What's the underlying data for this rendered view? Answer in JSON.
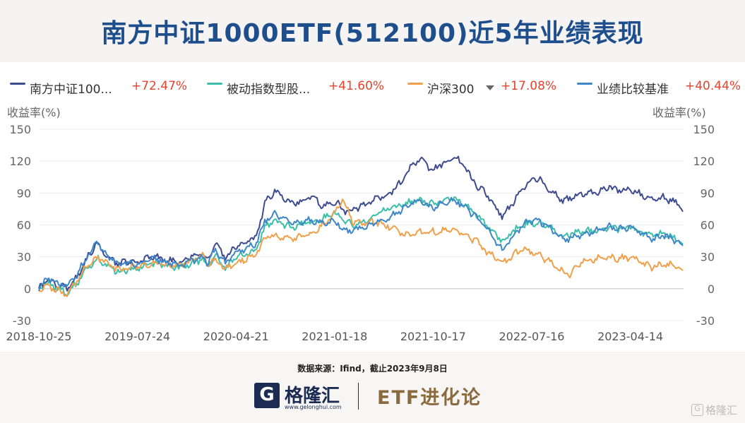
{
  "title": "南方中证1000ETF(512100)近5年业绩表现",
  "legend": [
    {
      "name": "南方中证100...",
      "value": "+72.47%",
      "color": "#3d4b8f"
    },
    {
      "name": "被动指数型股...",
      "value": "+41.60%",
      "color": "#3bbfa8"
    },
    {
      "name": "沪深300",
      "value": "+17.08%",
      "color": "#f0a04b",
      "dropdown_icon": "caret-down-icon"
    },
    {
      "name": "业绩比较基准",
      "value": "+40.44%",
      "color": "#3f86c8"
    }
  ],
  "source": "数据来源：Ifind，截止2023年9月8日",
  "footer": {
    "logo_mark": "G",
    "logo_text": "格隆汇",
    "logo_url": "www.gelonghui.com",
    "brand": "ETF进化论",
    "watermark_mark": "G",
    "watermark_text": "格隆汇"
  },
  "chart_data": {
    "type": "line",
    "ylabel_left": "收益率(%)",
    "ylabel_right": "收益率(%)",
    "ylim": [
      -30,
      150
    ],
    "yticks": [
      -30,
      0,
      30,
      60,
      90,
      120,
      150
    ],
    "xlim": [
      "2018-10-25",
      "2023-09-08"
    ],
    "xticks": [
      "2018-10-25",
      "2019-07-24",
      "2020-04-21",
      "2021-01-18",
      "2021-10-17",
      "2022-07-16",
      "2023-04-14"
    ],
    "grid": "horizontal",
    "series": [
      {
        "name": "南方中证100...",
        "color": "#3d4b8f",
        "final": 72.47,
        "points": [
          [
            "2018-10-25",
            0
          ],
          [
            "2018-11-20",
            8
          ],
          [
            "2018-12-20",
            3
          ],
          [
            "2019-01-10",
            0
          ],
          [
            "2019-02-10",
            12
          ],
          [
            "2019-03-05",
            28
          ],
          [
            "2019-04-05",
            44
          ],
          [
            "2019-04-25",
            30
          ],
          [
            "2019-06-01",
            24
          ],
          [
            "2019-07-24",
            26
          ],
          [
            "2019-09-10",
            30
          ],
          [
            "2019-11-20",
            24
          ],
          [
            "2019-12-31",
            32
          ],
          [
            "2020-01-20",
            34
          ],
          [
            "2020-02-03",
            26
          ],
          [
            "2020-02-24",
            44
          ],
          [
            "2020-03-23",
            28
          ],
          [
            "2020-04-21",
            40
          ],
          [
            "2020-06-15",
            48
          ],
          [
            "2020-07-10",
            80
          ],
          [
            "2020-08-05",
            92
          ],
          [
            "2020-09-20",
            80
          ],
          [
            "2020-11-20",
            86
          ],
          [
            "2020-12-15",
            78
          ],
          [
            "2021-01-18",
            82
          ],
          [
            "2021-02-20",
            72
          ],
          [
            "2021-03-20",
            76
          ],
          [
            "2021-04-20",
            80
          ],
          [
            "2021-05-20",
            86
          ],
          [
            "2021-06-20",
            90
          ],
          [
            "2021-07-20",
            100
          ],
          [
            "2021-08-20",
            116
          ],
          [
            "2021-09-10",
            122
          ],
          [
            "2021-10-17",
            112
          ],
          [
            "2021-11-15",
            118
          ],
          [
            "2021-12-13",
            124
          ],
          [
            "2022-01-10",
            116
          ],
          [
            "2022-02-10",
            98
          ],
          [
            "2022-03-10",
            90
          ],
          [
            "2022-04-26",
            68
          ],
          [
            "2022-05-20",
            78
          ],
          [
            "2022-06-20",
            94
          ],
          [
            "2022-07-16",
            102
          ],
          [
            "2022-08-05",
            104
          ],
          [
            "2022-09-01",
            94
          ],
          [
            "2022-10-10",
            82
          ],
          [
            "2022-11-05",
            86
          ],
          [
            "2022-12-05",
            90
          ],
          [
            "2023-01-10",
            90
          ],
          [
            "2023-02-15",
            96
          ],
          [
            "2023-03-15",
            92
          ],
          [
            "2023-04-14",
            94
          ],
          [
            "2023-05-15",
            88
          ],
          [
            "2023-06-15",
            84
          ],
          [
            "2023-07-15",
            86
          ],
          [
            "2023-08-15",
            82
          ],
          [
            "2023-09-08",
            72.47
          ]
        ]
      },
      {
        "name": "被动指数型股...",
        "color": "#3bbfa8",
        "final": 41.6,
        "points": [
          [
            "2018-10-25",
            0
          ],
          [
            "2018-11-20",
            5
          ],
          [
            "2018-12-20",
            0
          ],
          [
            "2019-01-10",
            -4
          ],
          [
            "2019-02-10",
            6
          ],
          [
            "2019-03-05",
            20
          ],
          [
            "2019-04-05",
            28
          ],
          [
            "2019-04-25",
            22
          ],
          [
            "2019-06-01",
            16
          ],
          [
            "2019-07-24",
            20
          ],
          [
            "2019-09-10",
            24
          ],
          [
            "2019-11-20",
            20
          ],
          [
            "2019-12-31",
            26
          ],
          [
            "2020-01-20",
            28
          ],
          [
            "2020-02-03",
            22
          ],
          [
            "2020-02-24",
            32
          ],
          [
            "2020-03-23",
            20
          ],
          [
            "2020-04-21",
            30
          ],
          [
            "2020-06-15",
            36
          ],
          [
            "2020-07-10",
            58
          ],
          [
            "2020-08-05",
            64
          ],
          [
            "2020-09-20",
            58
          ],
          [
            "2020-11-20",
            64
          ],
          [
            "2020-12-15",
            66
          ],
          [
            "2021-01-18",
            72
          ],
          [
            "2021-02-20",
            62
          ],
          [
            "2021-03-20",
            60
          ],
          [
            "2021-04-20",
            66
          ],
          [
            "2021-05-20",
            72
          ],
          [
            "2021-06-20",
            76
          ],
          [
            "2021-07-20",
            78
          ],
          [
            "2021-08-20",
            82
          ],
          [
            "2021-09-10",
            84
          ],
          [
            "2021-10-17",
            80
          ],
          [
            "2021-11-15",
            82
          ],
          [
            "2021-12-13",
            86
          ],
          [
            "2022-01-10",
            80
          ],
          [
            "2022-02-10",
            70
          ],
          [
            "2022-03-10",
            62
          ],
          [
            "2022-04-26",
            44
          ],
          [
            "2022-05-20",
            52
          ],
          [
            "2022-06-20",
            60
          ],
          [
            "2022-07-16",
            62
          ],
          [
            "2022-08-05",
            62
          ],
          [
            "2022-09-01",
            58
          ],
          [
            "2022-10-10",
            48
          ],
          [
            "2022-11-05",
            52
          ],
          [
            "2022-12-05",
            54
          ],
          [
            "2023-01-10",
            54
          ],
          [
            "2023-02-15",
            58
          ],
          [
            "2023-03-15",
            56
          ],
          [
            "2023-04-14",
            58
          ],
          [
            "2023-05-15",
            54
          ],
          [
            "2023-06-15",
            50
          ],
          [
            "2023-07-15",
            52
          ],
          [
            "2023-08-15",
            48
          ],
          [
            "2023-09-08",
            41.6
          ]
        ]
      },
      {
        "name": "沪深300",
        "color": "#f0a04b",
        "final": 17.08,
        "points": [
          [
            "2018-10-25",
            0
          ],
          [
            "2018-11-20",
            2
          ],
          [
            "2018-12-20",
            -2
          ],
          [
            "2019-01-10",
            -6
          ],
          [
            "2019-02-10",
            8
          ],
          [
            "2019-03-05",
            22
          ],
          [
            "2019-04-05",
            30
          ],
          [
            "2019-04-25",
            24
          ],
          [
            "2019-06-01",
            18
          ],
          [
            "2019-07-24",
            22
          ],
          [
            "2019-09-10",
            24
          ],
          [
            "2019-11-20",
            22
          ],
          [
            "2019-12-31",
            28
          ],
          [
            "2020-01-20",
            30
          ],
          [
            "2020-02-03",
            22
          ],
          [
            "2020-02-24",
            28
          ],
          [
            "2020-03-23",
            18
          ],
          [
            "2020-04-21",
            24
          ],
          [
            "2020-06-15",
            32
          ],
          [
            "2020-07-10",
            48
          ],
          [
            "2020-08-05",
            50
          ],
          [
            "2020-09-20",
            46
          ],
          [
            "2020-11-20",
            52
          ],
          [
            "2020-12-15",
            60
          ],
          [
            "2021-01-18",
            72
          ],
          [
            "2021-02-10",
            84
          ],
          [
            "2021-03-10",
            62
          ],
          [
            "2021-04-20",
            62
          ],
          [
            "2021-05-20",
            62
          ],
          [
            "2021-06-20",
            58
          ],
          [
            "2021-07-20",
            52
          ],
          [
            "2021-08-20",
            50
          ],
          [
            "2021-09-10",
            54
          ],
          [
            "2021-10-17",
            54
          ],
          [
            "2021-11-15",
            54
          ],
          [
            "2021-12-13",
            56
          ],
          [
            "2022-01-10",
            50
          ],
          [
            "2022-02-10",
            46
          ],
          [
            "2022-03-10",
            36
          ],
          [
            "2022-04-26",
            24
          ],
          [
            "2022-05-20",
            30
          ],
          [
            "2022-06-20",
            38
          ],
          [
            "2022-07-16",
            34
          ],
          [
            "2022-08-05",
            32
          ],
          [
            "2022-09-01",
            26
          ],
          [
            "2022-10-10",
            16
          ],
          [
            "2022-10-31",
            12
          ],
          [
            "2022-11-20",
            22
          ],
          [
            "2022-12-05",
            26
          ],
          [
            "2023-01-10",
            28
          ],
          [
            "2023-02-15",
            30
          ],
          [
            "2023-03-15",
            28
          ],
          [
            "2023-04-14",
            30
          ],
          [
            "2023-05-15",
            24
          ],
          [
            "2023-06-15",
            20
          ],
          [
            "2023-07-15",
            24
          ],
          [
            "2023-08-15",
            22
          ],
          [
            "2023-09-08",
            17.08
          ]
        ]
      },
      {
        "name": "业绩比较基准",
        "color": "#3f86c8",
        "final": 40.44,
        "points": [
          [
            "2018-10-25",
            0
          ],
          [
            "2018-11-20",
            10
          ],
          [
            "2018-12-20",
            4
          ],
          [
            "2019-01-10",
            2
          ],
          [
            "2019-02-10",
            14
          ],
          [
            "2019-03-05",
            30
          ],
          [
            "2019-04-05",
            44
          ],
          [
            "2019-04-25",
            32
          ],
          [
            "2019-06-01",
            24
          ],
          [
            "2019-07-24",
            24
          ],
          [
            "2019-09-10",
            28
          ],
          [
            "2019-11-20",
            22
          ],
          [
            "2019-12-31",
            28
          ],
          [
            "2020-01-20",
            30
          ],
          [
            "2020-02-03",
            24
          ],
          [
            "2020-02-24",
            38
          ],
          [
            "2020-03-23",
            24
          ],
          [
            "2020-04-21",
            34
          ],
          [
            "2020-06-15",
            42
          ],
          [
            "2020-07-10",
            64
          ],
          [
            "2020-08-05",
            70
          ],
          [
            "2020-09-20",
            62
          ],
          [
            "2020-11-20",
            64
          ],
          [
            "2020-12-15",
            62
          ],
          [
            "2021-01-18",
            64
          ],
          [
            "2021-02-20",
            54
          ],
          [
            "2021-03-20",
            56
          ],
          [
            "2021-04-20",
            58
          ],
          [
            "2021-05-20",
            64
          ],
          [
            "2021-06-20",
            68
          ],
          [
            "2021-07-20",
            74
          ],
          [
            "2021-08-20",
            80
          ],
          [
            "2021-09-10",
            82
          ],
          [
            "2021-10-17",
            76
          ],
          [
            "2021-11-15",
            80
          ],
          [
            "2021-12-13",
            84
          ],
          [
            "2022-01-10",
            78
          ],
          [
            "2022-02-10",
            68
          ],
          [
            "2022-03-10",
            58
          ],
          [
            "2022-04-26",
            36
          ],
          [
            "2022-05-20",
            46
          ],
          [
            "2022-06-20",
            60
          ],
          [
            "2022-07-16",
            64
          ],
          [
            "2022-08-05",
            64
          ],
          [
            "2022-09-01",
            58
          ],
          [
            "2022-10-10",
            46
          ],
          [
            "2022-11-05",
            48
          ],
          [
            "2022-12-05",
            52
          ],
          [
            "2023-01-10",
            54
          ],
          [
            "2023-02-15",
            58
          ],
          [
            "2023-03-15",
            56
          ],
          [
            "2023-04-14",
            58
          ],
          [
            "2023-05-15",
            52
          ],
          [
            "2023-06-15",
            46
          ],
          [
            "2023-07-15",
            50
          ],
          [
            "2023-08-15",
            46
          ],
          [
            "2023-09-08",
            40.44
          ]
        ]
      }
    ]
  }
}
